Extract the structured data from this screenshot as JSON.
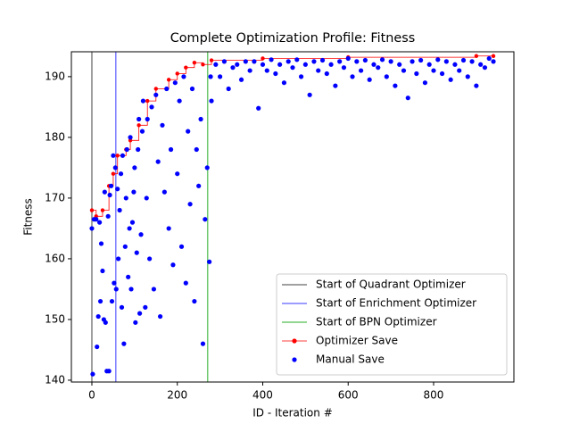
{
  "chart_data": {
    "type": "scatter",
    "title": "Complete Optimization Profile: Fitness",
    "x_label": "ID - Iteration #",
    "y_label": "Fitness",
    "xlim": [
      -48,
      988
    ],
    "ylim": [
      139.7,
      194.1
    ],
    "xticks": [
      0,
      200,
      400,
      600,
      800
    ],
    "yticks": [
      140,
      150,
      160,
      170,
      180,
      190
    ],
    "grid": false,
    "legend": "lower right",
    "vlines": [
      {
        "name": "Start of Quadrant Optimizer",
        "color": "#808080",
        "x": 0
      },
      {
        "name": "Start of Enrichment Optimizer",
        "color": "#7b7bff",
        "x": 56
      },
      {
        "name": "Start of BPN Optimizer",
        "color": "#6fc96f",
        "x": 271
      }
    ],
    "series": [
      {
        "name": "Optimizer Save",
        "color": "#ff0000",
        "kind": "step",
        "x": [
          0,
          10,
          25,
          40,
          50,
          60,
          80,
          90,
          110,
          130,
          150,
          180,
          200,
          220,
          240,
          260,
          280,
          400,
          600,
          900,
          940
        ],
        "values": [
          168,
          167,
          168,
          172,
          174,
          177,
          178,
          179.5,
          182,
          186,
          188,
          189.5,
          190.5,
          191.5,
          192.3,
          192,
          192.7,
          193,
          193.2,
          193.4,
          193.4
        ]
      },
      {
        "name": "Manual Save",
        "color": "#0000ff",
        "kind": "points",
        "x": [
          0,
          2,
          5,
          10,
          12,
          15,
          18,
          20,
          22,
          25,
          28,
          30,
          32,
          35,
          38,
          40,
          42,
          45,
          47,
          50,
          52,
          55,
          57,
          60,
          62,
          65,
          68,
          70,
          72,
          75,
          78,
          80,
          82,
          85,
          88,
          90,
          92,
          95,
          98,
          100,
          102,
          105,
          108,
          110,
          112,
          115,
          118,
          120,
          125,
          128,
          130,
          135,
          140,
          145,
          150,
          155,
          160,
          165,
          170,
          175,
          180,
          185,
          190,
          195,
          200,
          205,
          210,
          215,
          220,
          225,
          230,
          235,
          240,
          245,
          250,
          255,
          260,
          265,
          270,
          275,
          278,
          280,
          290,
          300,
          310,
          320,
          330,
          340,
          350,
          360,
          370,
          380,
          390,
          400,
          410,
          420,
          430,
          440,
          450,
          460,
          470,
          480,
          490,
          500,
          510,
          520,
          530,
          540,
          550,
          560,
          570,
          580,
          590,
          600,
          610,
          620,
          630,
          640,
          650,
          660,
          670,
          680,
          690,
          700,
          710,
          720,
          730,
          740,
          750,
          760,
          770,
          780,
          790,
          800,
          810,
          820,
          830,
          840,
          850,
          860,
          870,
          880,
          890,
          900,
          910,
          920,
          930,
          940
        ],
        "values": [
          165,
          141,
          166.5,
          166.5,
          145.5,
          150.5,
          166,
          153,
          162.5,
          158,
          150,
          171,
          149.5,
          141.5,
          167,
          141.5,
          170.5,
          172,
          153,
          177,
          156,
          175,
          155,
          171.5,
          160,
          168,
          174,
          152,
          177,
          146,
          162,
          170,
          178,
          157,
          165,
          180,
          155,
          166,
          171,
          175,
          149.5,
          161,
          178,
          183,
          151,
          164,
          181,
          186,
          152,
          170,
          183,
          160,
          185,
          155,
          187,
          176,
          150.5,
          182,
          171,
          188,
          165,
          178,
          159,
          189,
          174,
          186,
          162,
          190,
          156,
          181,
          169,
          188,
          153,
          178,
          172,
          183,
          146,
          166.5,
          175,
          159.5,
          190,
          186,
          192,
          190,
          192.5,
          188,
          191.5,
          192,
          189.5,
          192.5,
          191,
          192.5,
          184.8,
          192,
          191,
          192.8,
          190.5,
          192,
          189,
          192.5,
          191.5,
          192.8,
          190,
          192,
          187,
          192.5,
          191,
          192.7,
          190.5,
          192,
          188.5,
          192.5,
          191.5,
          193,
          190,
          192.5,
          191,
          192.7,
          189.5,
          192,
          191.5,
          192.8,
          190,
          192.5,
          188.5,
          192,
          191,
          186.5,
          192.5,
          190.5,
          192.7,
          189,
          192,
          191,
          192.8,
          190.5,
          192.5,
          189.5,
          192,
          191,
          192.7,
          190,
          192.5,
          188.5,
          192,
          191.5,
          193,
          192.5
        ]
      }
    ]
  }
}
